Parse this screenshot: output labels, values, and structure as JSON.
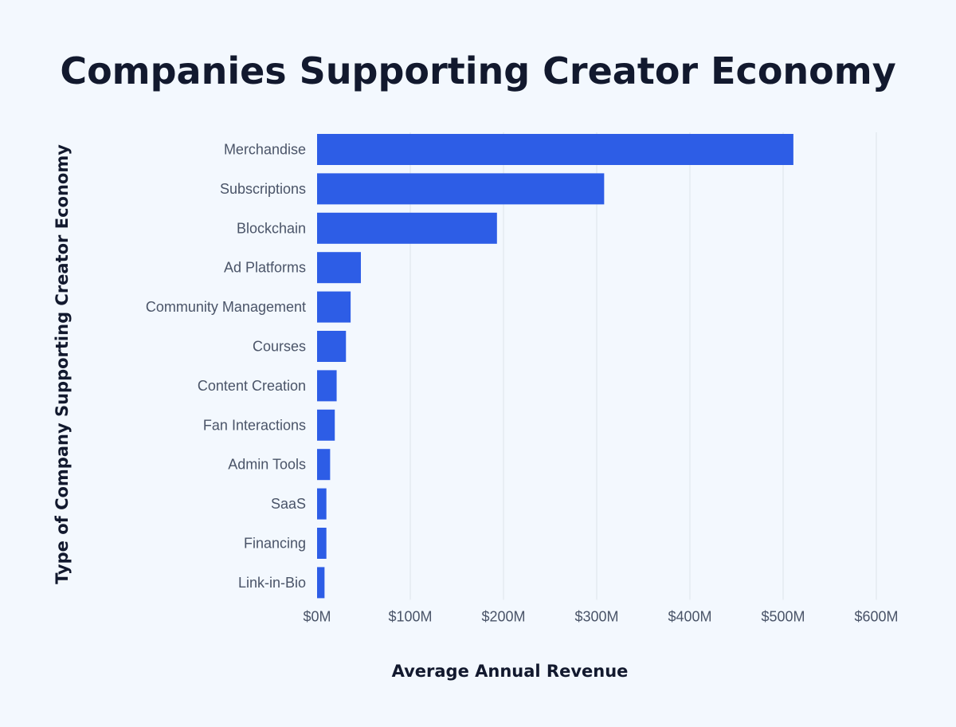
{
  "chart_data": {
    "type": "bar",
    "orientation": "horizontal",
    "title": "Companies Supporting Creator Economy",
    "xlabel": "Average Annual Revenue",
    "ylabel": "Type of Company Supporting Creator Economy",
    "categories": [
      "Merchandise",
      "Subscriptions",
      "Blockchain",
      "Ad Platforms",
      "Community Management",
      "Courses",
      "Content Creation",
      "Fan Interactions",
      "Admin Tools",
      "SaaS",
      "Financing",
      "Link-in-Bio"
    ],
    "values": [
      511,
      308,
      193,
      47,
      36,
      31,
      21,
      19,
      14,
      10,
      10,
      8
    ],
    "unit": "$M",
    "xlim": [
      0,
      600
    ],
    "xticks": [
      0,
      100,
      200,
      300,
      400,
      500,
      600
    ],
    "xtick_labels": [
      "$0M",
      "$100M",
      "$200M",
      "$300M",
      "$400M",
      "$500M",
      "$600M"
    ],
    "grid": "vertical",
    "bar_color": "#2d5de6",
    "grid_color": "#e1e8ee",
    "background": "#f3f8fe"
  }
}
